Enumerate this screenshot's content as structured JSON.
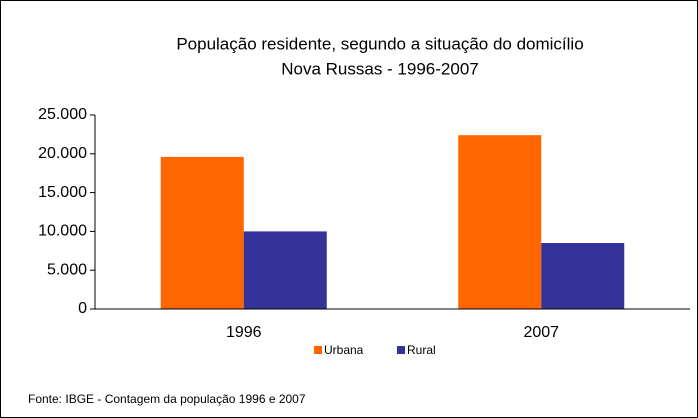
{
  "chart_data": {
    "type": "bar",
    "title": "População residente, segundo a situação do domicílio",
    "subtitle": "Nova  Russas - 1996-2007",
    "categories": [
      "1996",
      "2007"
    ],
    "series": [
      {
        "name": "Urbana",
        "color": "#ff6600",
        "values": [
          19600,
          22400
        ]
      },
      {
        "name": "Rural",
        "color": "#333399",
        "values": [
          10000,
          8500
        ]
      }
    ],
    "ylim": [
      0,
      25000
    ],
    "yticks": [
      0,
      {
        "value": 5000,
        "label": "5.000"
      },
      {
        "value": 10000,
        "label": "10.000"
      },
      {
        "value": 15000,
        "label": "15.000"
      },
      {
        "value": 20000,
        "label": "20.000"
      },
      {
        "value": 25000,
        "label": "25.000"
      }
    ],
    "legend": "bottom",
    "source": "Fonte: IBGE - Contagem da população 1996 e 2007"
  }
}
